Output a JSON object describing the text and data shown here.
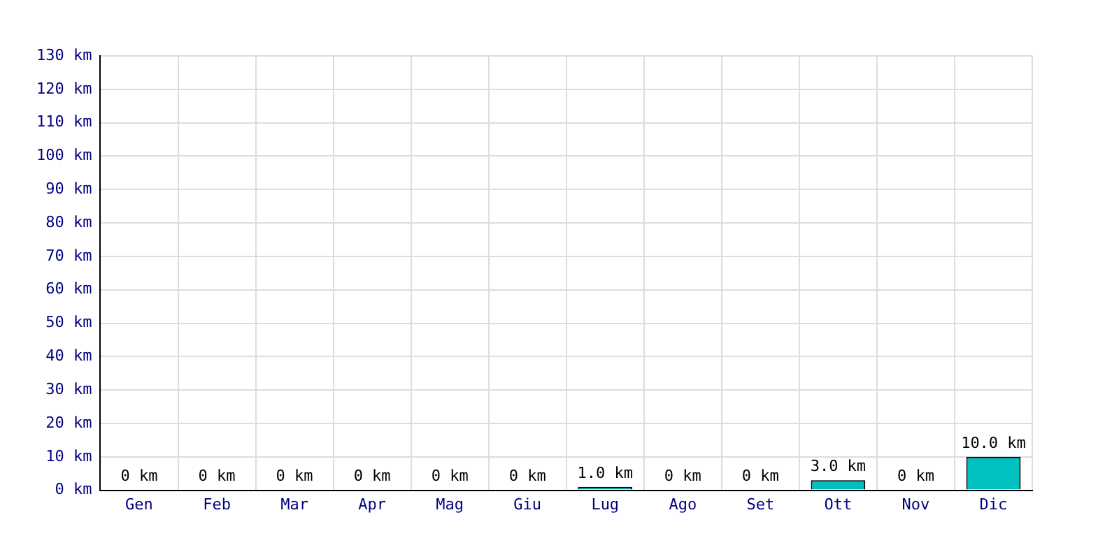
{
  "chart_data": {
    "type": "bar",
    "categories": [
      "Gen",
      "Feb",
      "Mar",
      "Apr",
      "Mag",
      "Giu",
      "Lug",
      "Ago",
      "Set",
      "Ott",
      "Nov",
      "Dic"
    ],
    "values": [
      0,
      0,
      0,
      0,
      0,
      0,
      1,
      0,
      0,
      3,
      0,
      10
    ],
    "value_labels": [
      "0 km",
      "0 km",
      "0 km",
      "0 km",
      "0 km",
      "0 km",
      "1.0 km",
      "0 km",
      "0 km",
      "3.0 km",
      "0 km",
      "10.0 km"
    ],
    "color": "#00c0c0",
    "ylim": [
      0,
      130
    ],
    "yticks": [
      {
        "value": 0,
        "label": "0 km"
      },
      {
        "value": 10,
        "label": "10 km"
      },
      {
        "value": 20,
        "label": "20 km"
      },
      {
        "value": 30,
        "label": "30 km"
      },
      {
        "value": 40,
        "label": "40 km"
      },
      {
        "value": 50,
        "label": "50 km"
      },
      {
        "value": 60,
        "label": "60 km"
      },
      {
        "value": 70,
        "label": "70 km"
      },
      {
        "value": 80,
        "label": "80 km"
      },
      {
        "value": 90,
        "label": "90 km"
      },
      {
        "value": 100,
        "label": "100 km"
      },
      {
        "value": 110,
        "label": "110 km"
      },
      {
        "value": 120,
        "label": "120 km"
      },
      {
        "value": 130,
        "label": "130 km"
      }
    ],
    "grid": true,
    "legend": false
  }
}
